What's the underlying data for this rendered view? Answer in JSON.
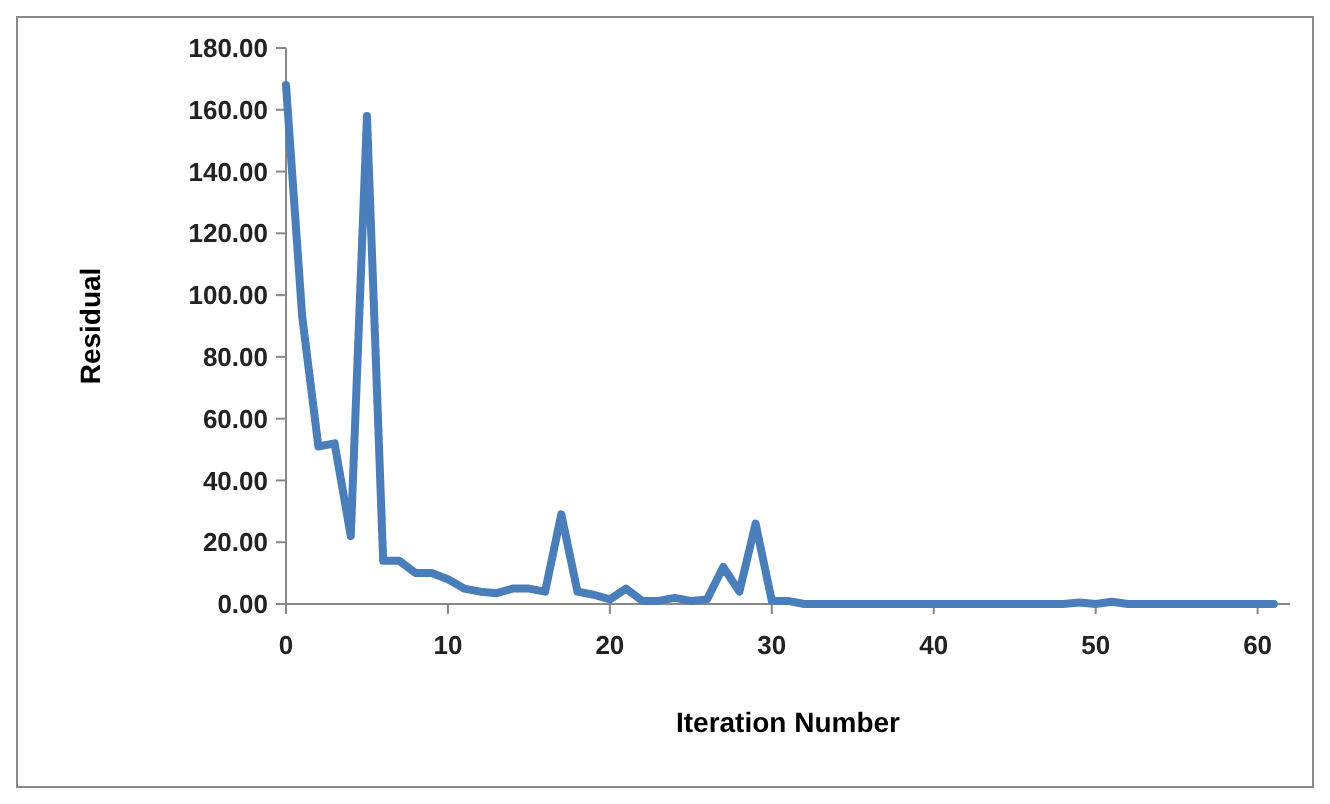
{
  "chart_data": {
    "type": "line",
    "xlabel": "Iteration Number",
    "ylabel": "Residual",
    "x": [
      0,
      1,
      2,
      3,
      4,
      5,
      6,
      7,
      8,
      9,
      10,
      11,
      12,
      13,
      14,
      15,
      16,
      17,
      18,
      19,
      20,
      21,
      22,
      23,
      24,
      25,
      26,
      27,
      28,
      29,
      30,
      31,
      32,
      33,
      34,
      35,
      36,
      37,
      38,
      39,
      40,
      41,
      42,
      43,
      44,
      45,
      46,
      47,
      48,
      49,
      50,
      51,
      52,
      53,
      54,
      55,
      56,
      57,
      58,
      59,
      60,
      61
    ],
    "series": [
      {
        "color": "#4a7ebb",
        "values": [
          168,
          93,
          51,
          52,
          22,
          158,
          14,
          14,
          10,
          10,
          8,
          5,
          4,
          3.5,
          5,
          5,
          4,
          29,
          4,
          3,
          1.5,
          5,
          1,
          1,
          2,
          1,
          1.5,
          12,
          4,
          26,
          1,
          1,
          0,
          0,
          0,
          0,
          0,
          0,
          0,
          0,
          0,
          0,
          0,
          0,
          0,
          0,
          0,
          0,
          0,
          0.5,
          0,
          0.7,
          0,
          0,
          0,
          0,
          0,
          0,
          0,
          0,
          0,
          0
        ]
      }
    ],
    "xlim": [
      0,
      62
    ],
    "xticks": [
      0,
      10,
      20,
      30,
      40,
      50,
      60
    ],
    "ylim": [
      0,
      180
    ],
    "yticks": [
      {
        "value": 0,
        "label": "0.00"
      },
      {
        "value": 20,
        "label": "20.00"
      },
      {
        "value": 40,
        "label": "40.00"
      },
      {
        "value": 60,
        "label": "60.00"
      },
      {
        "value": 80,
        "label": "80.00"
      },
      {
        "value": 100,
        "label": "100.00"
      },
      {
        "value": 120,
        "label": "120.00"
      },
      {
        "value": 140,
        "label": "140.00"
      },
      {
        "value": 160,
        "label": "160.00"
      },
      {
        "value": 180,
        "label": "180.00"
      }
    ],
    "grid": false,
    "marker": "none",
    "line_style": "solid"
  }
}
